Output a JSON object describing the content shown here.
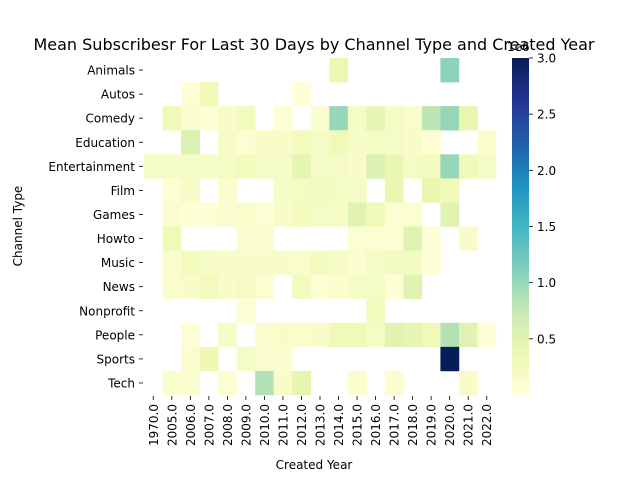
{
  "chart_data": {
    "type": "heatmap",
    "title": "Mean Subscribesr For Last 30 Days by Channel Type and Created Year",
    "xlabel": "Created Year",
    "ylabel": "Channel Type",
    "x": [
      "1970.0",
      "2005.0",
      "2006.0",
      "2007.0",
      "2008.0",
      "2009.0",
      "2010.0",
      "2011.0",
      "2012.0",
      "2013.0",
      "2014.0",
      "2015.0",
      "2016.0",
      "2017.0",
      "2018.0",
      "2019.0",
      "2020.0",
      "2021.0",
      "2022.0"
    ],
    "y": [
      "Animals",
      "Autos",
      "Comedy",
      "Education",
      "Entertainment",
      "Film",
      "Games",
      "Howto",
      "Music",
      "News",
      "Nonprofit",
      "People",
      "Sports",
      "Tech"
    ],
    "values": [
      [
        null,
        null,
        null,
        null,
        null,
        null,
        null,
        null,
        null,
        null,
        380000,
        null,
        null,
        null,
        null,
        null,
        1050000,
        null,
        null
      ],
      [
        null,
        null,
        40000,
        300000,
        null,
        null,
        null,
        null,
        20000,
        null,
        null,
        null,
        null,
        null,
        null,
        null,
        null,
        null,
        null
      ],
      [
        null,
        300000,
        100000,
        60000,
        150000,
        260000,
        null,
        50000,
        null,
        100000,
        1000000,
        200000,
        450000,
        200000,
        120000,
        800000,
        1000000,
        400000,
        null
      ],
      [
        null,
        null,
        550000,
        null,
        180000,
        80000,
        150000,
        150000,
        250000,
        200000,
        320000,
        180000,
        200000,
        200000,
        150000,
        50000,
        null,
        null,
        100000
      ],
      [
        200000,
        200000,
        200000,
        180000,
        200000,
        260000,
        200000,
        200000,
        450000,
        200000,
        200000,
        160000,
        550000,
        400000,
        200000,
        220000,
        1000000,
        300000,
        200000
      ],
      [
        null,
        50000,
        150000,
        null,
        100000,
        null,
        null,
        200000,
        200000,
        250000,
        200000,
        200000,
        null,
        400000,
        null,
        400000,
        300000,
        null,
        null
      ],
      [
        null,
        100000,
        50000,
        50000,
        100000,
        120000,
        50000,
        150000,
        250000,
        200000,
        180000,
        500000,
        300000,
        80000,
        80000,
        null,
        500000,
        null,
        null
      ],
      [
        null,
        300000,
        null,
        null,
        null,
        100000,
        100000,
        null,
        null,
        null,
        null,
        80000,
        80000,
        80000,
        500000,
        50000,
        null,
        150000,
        null
      ],
      [
        null,
        120000,
        250000,
        180000,
        150000,
        150000,
        150000,
        150000,
        130000,
        250000,
        180000,
        100000,
        200000,
        220000,
        220000,
        50000,
        null,
        null,
        null
      ],
      [
        null,
        120000,
        150000,
        250000,
        150000,
        200000,
        80000,
        null,
        250000,
        60000,
        100000,
        180000,
        200000,
        50000,
        500000,
        null,
        null,
        null,
        null
      ],
      [
        null,
        null,
        null,
        null,
        null,
        50000,
        null,
        null,
        null,
        null,
        null,
        null,
        250000,
        null,
        null,
        null,
        null,
        null,
        null
      ],
      [
        null,
        null,
        50000,
        null,
        180000,
        null,
        100000,
        150000,
        120000,
        160000,
        300000,
        320000,
        200000,
        500000,
        450000,
        300000,
        850000,
        500000,
        30000
      ],
      [
        null,
        null,
        100000,
        350000,
        null,
        200000,
        100000,
        100000,
        null,
        null,
        null,
        null,
        null,
        null,
        null,
        null,
        3000000,
        null,
        null
      ],
      [
        null,
        100000,
        100000,
        null,
        80000,
        null,
        850000,
        160000,
        450000,
        null,
        null,
        100000,
        null,
        100000,
        null,
        null,
        null,
        150000,
        null
      ]
    ],
    "colorbar": {
      "ticks": [
        "0.5",
        "1.0",
        "1.5",
        "2.0",
        "2.5",
        "3.0"
      ],
      "offset_label": "1e6",
      "range": [
        0,
        3000000
      ]
    },
    "colormap": "YlGnBu"
  }
}
